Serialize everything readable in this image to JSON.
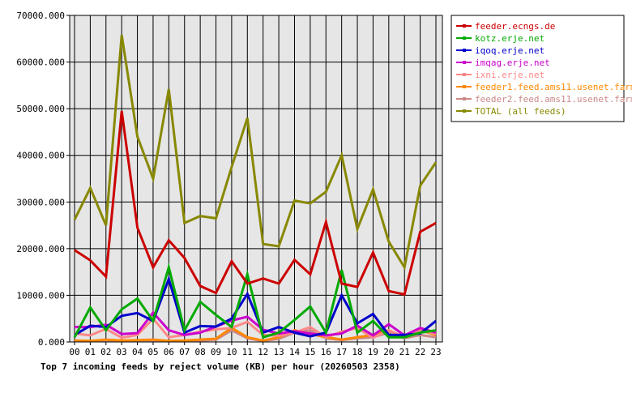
{
  "chart_data": {
    "type": "line",
    "title": "Top 7 incoming feeds by reject volume (KB) per hour (20260503 2358)",
    "xlabel": "",
    "ylabel": "",
    "ylim": [
      0,
      70000
    ],
    "yticks": [
      "0.000",
      "10000.000",
      "20000.000",
      "30000.000",
      "40000.000",
      "50000.000",
      "60000.000",
      "70000.000"
    ],
    "categories": [
      "00",
      "01",
      "02",
      "03",
      "04",
      "05",
      "06",
      "07",
      "08",
      "09",
      "10",
      "11",
      "12",
      "13",
      "14",
      "15",
      "16",
      "17",
      "18",
      "19",
      "20",
      "21",
      "22",
      "23"
    ],
    "grid": true,
    "legend_position": "right",
    "series": [
      {
        "name": "feeder.ecngs.de",
        "color": "#cc0000",
        "values": [
          19700,
          17500,
          14000,
          49500,
          24500,
          16000,
          21800,
          18000,
          12000,
          10500,
          17300,
          12500,
          13600,
          12500,
          17600,
          14500,
          25700,
          12500,
          11800,
          19200,
          10900,
          10200,
          23600,
          25500
        ]
      },
      {
        "name": "kotz.erje.net",
        "color": "#00aa00",
        "values": [
          1000,
          7400,
          2500,
          7000,
          9300,
          4500,
          16000,
          2500,
          8600,
          5800,
          3200,
          14500,
          1000,
          2000,
          4700,
          7600,
          2000,
          15400,
          2000,
          4500,
          1000,
          1000,
          2000,
          2500
        ]
      },
      {
        "name": "iqoq.erje.net",
        "color": "#0000cc",
        "values": [
          1500,
          3500,
          3200,
          5600,
          6200,
          4500,
          13500,
          2000,
          3400,
          3300,
          5000,
          10300,
          2000,
          3200,
          2000,
          1200,
          2000,
          10000,
          4000,
          6000,
          1500,
          1500,
          1800,
          4500
        ]
      },
      {
        "name": "imqag.erje.net",
        "color": "#cc00cc",
        "values": [
          3200,
          3200,
          3700,
          1700,
          1900,
          6300,
          2500,
          1500,
          2000,
          3300,
          4600,
          5400,
          2600,
          1800,
          2300,
          1800,
          1400,
          1800,
          3500,
          1400,
          3800,
          1400,
          3000,
          2000
        ]
      },
      {
        "name": "ixni.erje.net",
        "color": "#ff8888",
        "values": [
          1800,
          1400,
          2800,
          900,
          1500,
          5000,
          1000,
          1500,
          2200,
          2700,
          3000,
          4300,
          1500,
          1300,
          2000,
          3200,
          1000,
          2200,
          3000,
          900,
          2500,
          1000,
          2500,
          1700
        ]
      },
      {
        "name": "feeder1.feed.ams11.usenet.farm",
        "color": "#ff8800",
        "values": [
          300,
          200,
          500,
          300,
          400,
          500,
          200,
          300,
          500,
          700,
          3000,
          1000,
          300,
          1000,
          2500,
          1700,
          1000,
          500,
          1000,
          1500,
          2500,
          1000,
          2500,
          1500
        ]
      },
      {
        "name": "feeder2.feed.ams11.usenet.farm",
        "color": "#cc8888",
        "values": [
          200,
          200,
          300,
          200,
          300,
          300,
          200,
          200,
          300,
          500,
          2500,
          800,
          200,
          700,
          2000,
          2500,
          800,
          400,
          800,
          1000,
          2000,
          800,
          1500,
          1000
        ]
      },
      {
        "name": "TOTAL (all feeds)",
        "color": "#888800",
        "values": [
          26200,
          33000,
          25000,
          65800,
          44000,
          35000,
          54200,
          25500,
          27000,
          26500,
          37500,
          48000,
          21000,
          20500,
          30300,
          29700,
          32200,
          40000,
          24200,
          32700,
          21500,
          16000,
          33500,
          38500
        ]
      }
    ]
  }
}
